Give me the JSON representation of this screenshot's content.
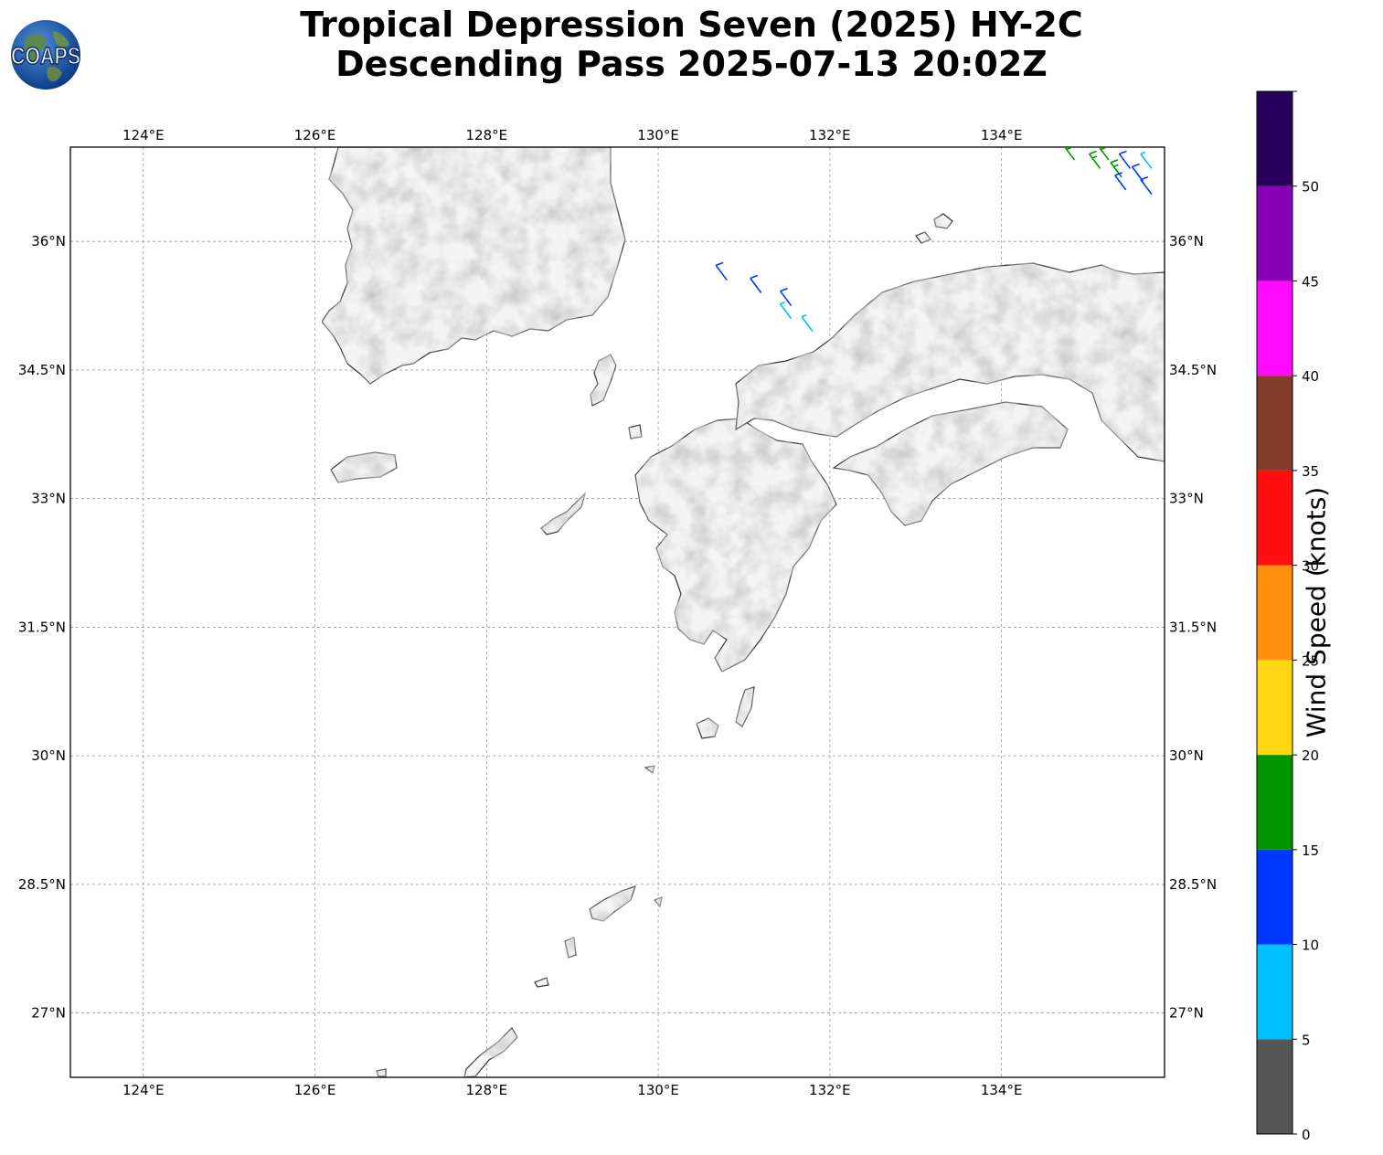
{
  "title_line1": "Tropical Depression Seven (2025) HY-2C",
  "title_line2": "Descending Pass 2025-07-13 20:02Z",
  "logo_text": "COAPS",
  "map": {
    "lon_range": [
      123.15,
      135.9
    ],
    "lat_range": [
      26.25,
      37.1
    ],
    "lon_ticks": [
      {
        "value": 124,
        "label": "124°E"
      },
      {
        "value": 126,
        "label": "126°E"
      },
      {
        "value": 128,
        "label": "128°E"
      },
      {
        "value": 130,
        "label": "130°E"
      },
      {
        "value": 132,
        "label": "132°E"
      },
      {
        "value": 134,
        "label": "134°E"
      }
    ],
    "lat_ticks": [
      {
        "value": 36,
        "label": "36°N"
      },
      {
        "value": 34.5,
        "label": "34.5°N"
      },
      {
        "value": 33,
        "label": "33°N"
      },
      {
        "value": 31.5,
        "label": "31.5°N"
      },
      {
        "value": 30,
        "label": "30°N"
      },
      {
        "value": 28.5,
        "label": "28.5°N"
      },
      {
        "value": 27,
        "label": "27°N"
      }
    ],
    "coastline_color": "#333333",
    "land_shade": "#dcdcdc",
    "grid": true
  },
  "wind_barbs": [
    {
      "lon": 130.8,
      "lat": 35.55,
      "speed": 12
    },
    {
      "lon": 131.2,
      "lat": 35.4,
      "speed": 12
    },
    {
      "lon": 131.55,
      "lat": 35.25,
      "speed": 11
    },
    {
      "lon": 131.55,
      "lat": 35.1,
      "speed": 8
    },
    {
      "lon": 131.8,
      "lat": 34.95,
      "speed": 8
    },
    {
      "lon": 134.85,
      "lat": 36.95,
      "speed": 17
    },
    {
      "lon": 135.15,
      "lat": 36.85,
      "speed": 17
    },
    {
      "lon": 135.4,
      "lat": 36.75,
      "speed": 17
    },
    {
      "lon": 135.25,
      "lat": 36.95,
      "speed": 17
    },
    {
      "lon": 135.5,
      "lat": 36.85,
      "speed": 12
    },
    {
      "lon": 135.65,
      "lat": 36.7,
      "speed": 12
    },
    {
      "lon": 135.45,
      "lat": 36.6,
      "speed": 12
    },
    {
      "lon": 135.75,
      "lat": 36.55,
      "speed": 12
    },
    {
      "lon": 135.75,
      "lat": 36.85,
      "speed": 8
    }
  ],
  "colorbar": {
    "label": "Wind Speed (knots)",
    "bins": [
      {
        "min": 0,
        "max": 5,
        "color": "#555555"
      },
      {
        "min": 5,
        "max": 10,
        "color": "#00bfff"
      },
      {
        "min": 10,
        "max": 15,
        "color": "#0038ff"
      },
      {
        "min": 15,
        "max": 20,
        "color": "#009400"
      },
      {
        "min": 20,
        "max": 25,
        "color": "#ffd712"
      },
      {
        "min": 25,
        "max": 30,
        "color": "#ff8f0c"
      },
      {
        "min": 30,
        "max": 35,
        "color": "#ff0f0f"
      },
      {
        "min": 35,
        "max": 40,
        "color": "#823c2a"
      },
      {
        "min": 40,
        "max": 45,
        "color": "#ff0aff"
      },
      {
        "min": 45,
        "max": 50,
        "color": "#8800b3"
      },
      {
        "min": 50,
        "max": 55,
        "color": "#2a005f"
      }
    ],
    "ticks": [
      "0",
      "5",
      "10",
      "15",
      "20",
      "25",
      "30",
      "35",
      "40",
      "45",
      "50"
    ]
  }
}
